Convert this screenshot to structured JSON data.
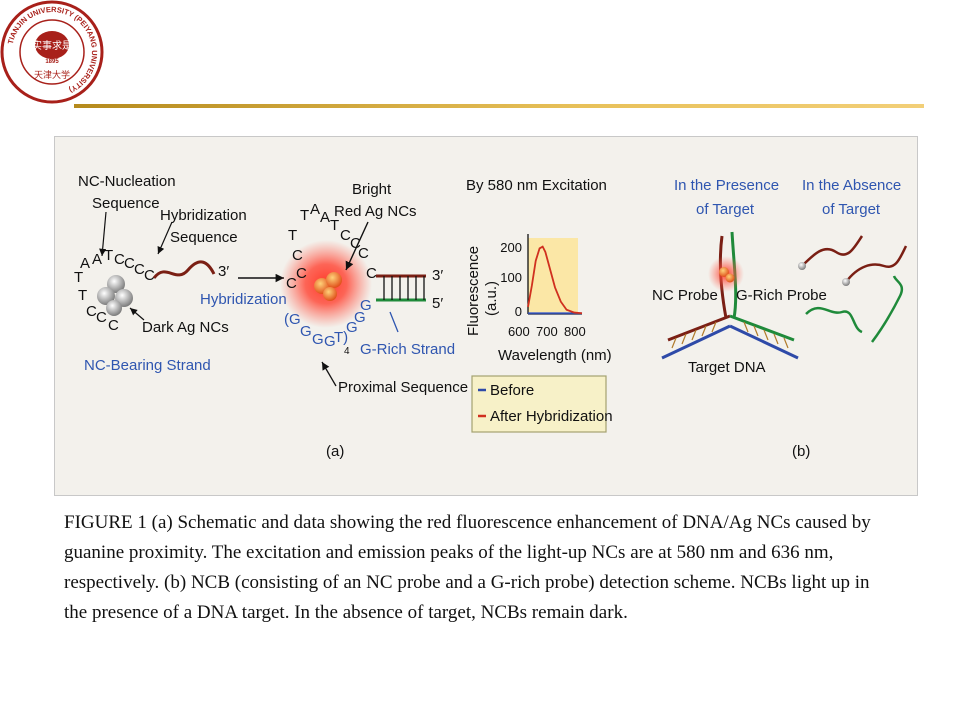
{
  "logo": {
    "ring_text": "TIANJIN UNIVERSITY (PEIYANG UNIVERSITY)",
    "center_text": "实事求是",
    "year": "1895",
    "bottom_text": "天津大学"
  },
  "colors": {
    "rule": "#d9a93a",
    "panel_bg": "#f3f1ec",
    "label_blue": "#2f56b0",
    "label_teal": "#23508a"
  },
  "panel_a": {
    "nc_nucleation": [
      "NC-Nucleation",
      "Sequence"
    ],
    "hybridization_seq": [
      "Hybridization",
      "Sequence"
    ],
    "three_prime": "3′",
    "hybridization_arrow": "Hybridization",
    "dark_ag": "Dark Ag NCs",
    "nc_bearing": "NC-Bearing Strand",
    "bright": [
      "Bright",
      "Red Ag NCs"
    ],
    "three_prime_b": "3′",
    "five_prime": "5′",
    "g_rich_strand": "G-Rich Strand",
    "proximal": "Proximal Sequence",
    "label": "(a)"
  },
  "plot": {
    "title": "By 580 nm Excitation",
    "ylabel": [
      "Fluorescence",
      "(a.u.)"
    ],
    "yticks": [
      "200",
      "100",
      "0"
    ],
    "xticks": [
      "600",
      "700",
      "800"
    ],
    "xlabel": "Wavelength (nm)",
    "legend": [
      "Before",
      "After Hybridization"
    ]
  },
  "chart_data": {
    "type": "line",
    "title": "By 580 nm Excitation",
    "xlabel": "Wavelength (nm)",
    "ylabel": "Fluorescence (a.u.)",
    "xlim": [
      560,
      840
    ],
    "ylim": [
      0,
      220
    ],
    "series": [
      {
        "name": "Before",
        "color": "#2e4aa8",
        "x": [
          560,
          600,
          650,
          700,
          750,
          800,
          840
        ],
        "y": [
          2,
          2,
          2,
          2,
          2,
          2,
          2
        ]
      },
      {
        "name": "After Hybridization",
        "color": "#d0301f",
        "x": [
          560,
          580,
          600,
          620,
          636,
          650,
          670,
          700,
          730,
          760,
          800,
          840
        ],
        "y": [
          20,
          80,
          150,
          185,
          190,
          175,
          135,
          75,
          35,
          12,
          4,
          2
        ]
      }
    ]
  },
  "panel_b": {
    "presence": [
      "In the Presence",
      "of Target"
    ],
    "absence": [
      "In the Absence",
      "of Target"
    ],
    "nc_probe": "NC Probe",
    "g_rich_probe": "G-Rich Probe",
    "target_dna": "Target DNA",
    "label": "(b)"
  },
  "caption": "FIGURE 1 (a) Schematic and data showing the red fluorescence enhancement of DNA/Ag NCs caused by guanine proximity. The excitation and emission peaks of the light-up NCs are at 580 nm and 636 nm, respectively. (b) NCB (consisting of an NC probe and a G-rich probe) detection scheme. NCBs light up in the presence of a DNA target. In the absence of target, NCBs remain dark."
}
